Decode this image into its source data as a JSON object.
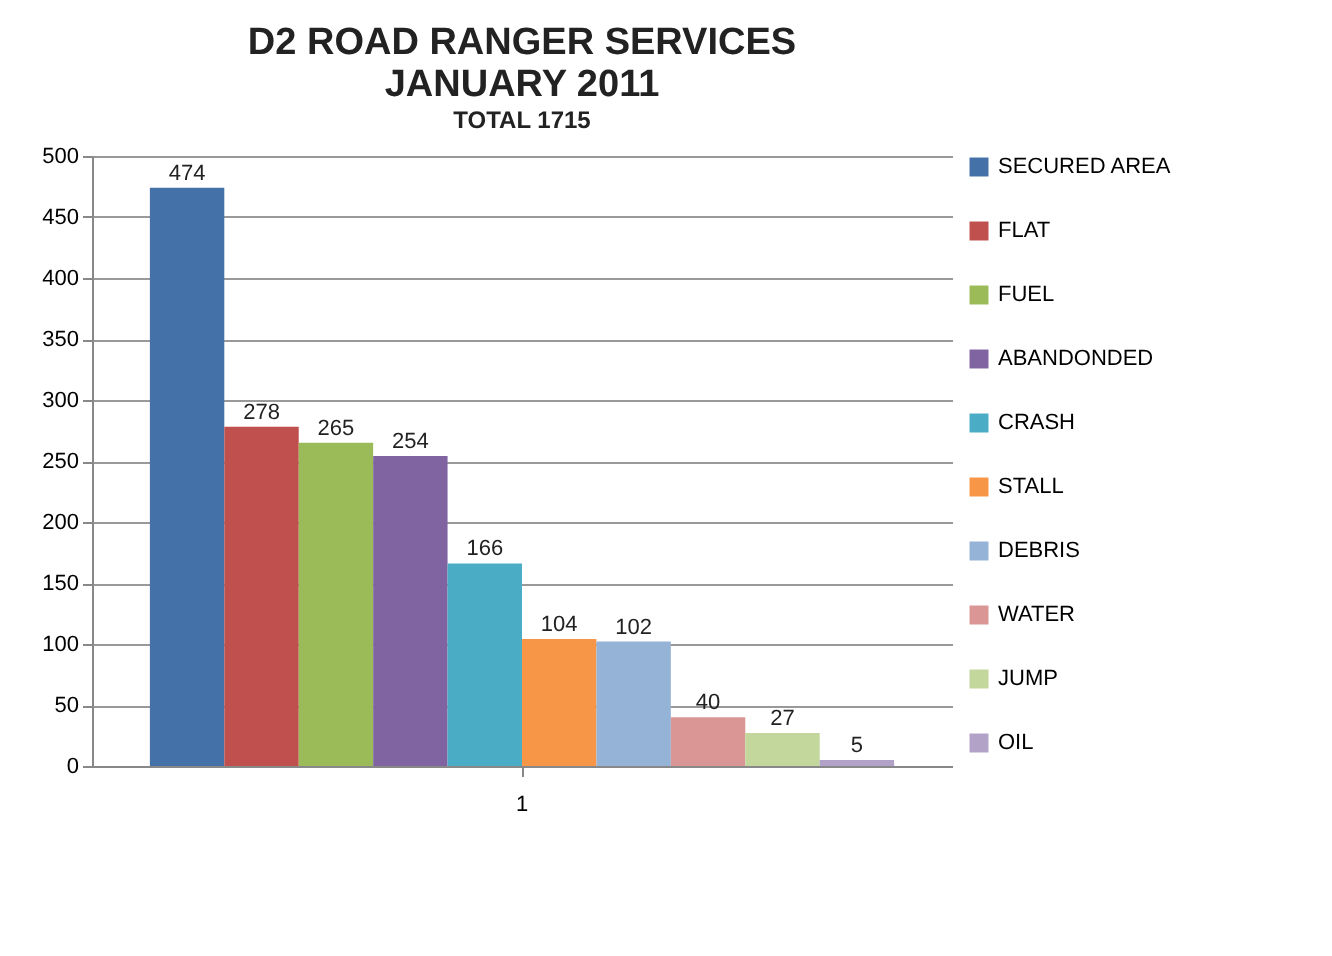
{
  "chart_data": {
    "type": "bar",
    "title": "D2 ROAD RANGER SERVICES\nJANUARY 2011",
    "subtitle": "TOTAL 1715",
    "categories": [
      "1"
    ],
    "series": [
      {
        "name": "SECURED AREA",
        "color": "#4472a8",
        "values": [
          474
        ]
      },
      {
        "name": "FLAT",
        "color": "#c0504d",
        "values": [
          278
        ]
      },
      {
        "name": "FUEL",
        "color": "#9bbb59",
        "values": [
          265
        ]
      },
      {
        "name": "ABANDONDED",
        "color": "#8064a2",
        "values": [
          254
        ]
      },
      {
        "name": "CRASH",
        "color": "#4bacc6",
        "values": [
          166
        ]
      },
      {
        "name": "STALL",
        "color": "#f79646",
        "values": [
          104
        ]
      },
      {
        "name": "DEBRIS",
        "color": "#95b3d7",
        "values": [
          102
        ]
      },
      {
        "name": "WATER",
        "color": "#d99694",
        "values": [
          40
        ]
      },
      {
        "name": "JUMP",
        "color": "#c3d69b",
        "values": [
          27
        ]
      },
      {
        "name": "OIL",
        "color": "#b3a2c7",
        "values": [
          5
        ]
      }
    ],
    "ylim": [
      0,
      500
    ],
    "yticks": [
      0,
      50,
      100,
      150,
      200,
      250,
      300,
      350,
      400,
      450,
      500
    ],
    "grid": "y",
    "legend": "right",
    "data_labels": true
  }
}
